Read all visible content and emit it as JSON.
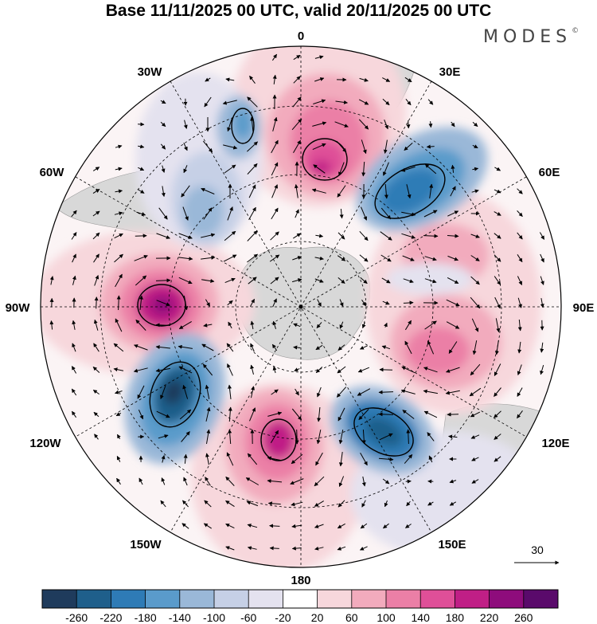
{
  "title": "Base 11/11/2025 00 UTC, valid 20/11/2025 00 UTC",
  "brand": "MODES",
  "brand_mark": "©",
  "map": {
    "projection": "south polar stereographic",
    "field": "anomaly",
    "longitude_labels": {
      "top": "0",
      "bottom": "180",
      "left": "90W",
      "right": "90E",
      "upper_left_1": "30W",
      "upper_left_2": "60W",
      "lower_left_1": "120W",
      "lower_left_2": "150W",
      "upper_right_1": "30E",
      "upper_right_2": "60E",
      "lower_right_1": "120E",
      "lower_right_2": "150E"
    },
    "reference_vector_label": "30"
  },
  "colorbar": {
    "colors": [
      "#1f3b5c",
      "#1f5f8b",
      "#2e7bb6",
      "#5a9bcb",
      "#9ab8d8",
      "#c6d0e6",
      "#e4e2ef",
      "#ffffff",
      "#f7d7dc",
      "#f2abbd",
      "#eb7fa6",
      "#df4f98",
      "#c01f86",
      "#8e0c7c",
      "#5a0a6b"
    ],
    "ticks": [
      "-260",
      "-220",
      "-180",
      "-140",
      "-100",
      "-60",
      "-20",
      "20",
      "60",
      "100",
      "140",
      "180",
      "220",
      "260"
    ]
  },
  "colors": {
    "land": "#d6d6d6",
    "grid": "#000000",
    "vector": "#000000"
  }
}
